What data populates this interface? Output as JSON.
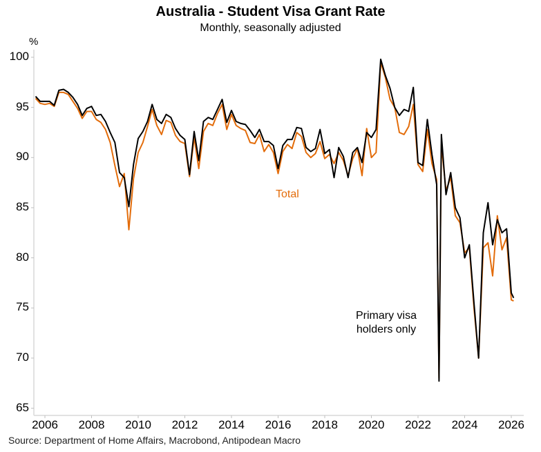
{
  "header": {
    "title": "Australia - Student Visa Grant Rate",
    "subtitle": "Monthly, seasonally adjusted"
  },
  "footer": {
    "source": "Source: Department of Home Affairs, Macrobond, Antipodean Macro"
  },
  "annotations": {
    "total": "Total",
    "primary_line1": "Primary visa",
    "primary_line2": "holders only"
  },
  "colors": {
    "total": "#e36c0a",
    "primary": "#000000",
    "axis": "#d9d9d9"
  },
  "chart_data": {
    "type": "line",
    "title": "Australia - Student Visa Grant Rate",
    "subtitle": "Monthly, seasonally adjusted",
    "xlabel": "",
    "ylabel": "%",
    "ylim": [
      65,
      100
    ],
    "xlim": [
      2005.5,
      2026.3
    ],
    "yticks": [
      65,
      70,
      75,
      80,
      85,
      90,
      95,
      100
    ],
    "xticks": [
      2006,
      2008,
      2010,
      2012,
      2014,
      2016,
      2018,
      2020,
      2022,
      2024,
      2026
    ],
    "grid": false,
    "legend": "inline annotations",
    "series": [
      {
        "name": "Total",
        "color": "#e36c0a",
        "x": [
          2005.6,
          2005.8,
          2006.0,
          2006.2,
          2006.4,
          2006.6,
          2006.8,
          2007.0,
          2007.2,
          2007.4,
          2007.6,
          2007.8,
          2008.0,
          2008.2,
          2008.4,
          2008.6,
          2008.8,
          2009.0,
          2009.2,
          2009.4,
          2009.6,
          2009.8,
          2010.0,
          2010.2,
          2010.4,
          2010.6,
          2010.8,
          2011.0,
          2011.2,
          2011.4,
          2011.6,
          2011.8,
          2012.0,
          2012.2,
          2012.4,
          2012.6,
          2012.8,
          2013.0,
          2013.2,
          2013.4,
          2013.6,
          2013.8,
          2014.0,
          2014.2,
          2014.4,
          2014.6,
          2014.8,
          2015.0,
          2015.2,
          2015.4,
          2015.6,
          2015.8,
          2016.0,
          2016.2,
          2016.4,
          2016.6,
          2016.8,
          2017.0,
          2017.2,
          2017.4,
          2017.6,
          2017.8,
          2018.0,
          2018.2,
          2018.4,
          2018.6,
          2018.8,
          2019.0,
          2019.2,
          2019.4,
          2019.6,
          2019.8,
          2020.0,
          2020.2,
          2020.4,
          2020.6,
          2020.8,
          2021.0,
          2021.2,
          2021.4,
          2021.6,
          2021.8,
          2022.0,
          2022.2,
          2022.4,
          2022.6,
          2022.8,
          2022.9,
          2023.0,
          2023.2,
          2023.4,
          2023.6,
          2023.8,
          2024.0,
          2024.2,
          2024.4,
          2024.6,
          2024.8,
          2025.0,
          2025.2,
          2025.4,
          2025.6,
          2025.8,
          2026.0,
          2026.1
        ],
        "values": [
          95.9,
          95.4,
          95.3,
          95.4,
          95.1,
          96.5,
          96.5,
          96.3,
          95.6,
          94.9,
          93.9,
          94.6,
          94.6,
          93.8,
          93.5,
          92.8,
          91.5,
          89.2,
          87.1,
          88.4,
          82.8,
          87.9,
          90.5,
          91.5,
          93.1,
          94.8,
          93.2,
          92.3,
          93.7,
          93.5,
          92.2,
          91.6,
          91.4,
          88.1,
          92.0,
          88.9,
          92.6,
          93.4,
          93.2,
          94.4,
          95.3,
          92.8,
          94.3,
          93.2,
          92.9,
          92.7,
          91.5,
          91.4,
          92.3,
          90.6,
          91.3,
          90.5,
          88.4,
          90.6,
          91.3,
          90.9,
          92.5,
          92.1,
          90.5,
          90.0,
          90.4,
          91.6,
          89.9,
          90.3,
          89.4,
          90.5,
          89.7,
          88.2,
          89.9,
          90.9,
          88.2,
          92.9,
          90.0,
          90.5,
          99.5,
          98.0,
          95.8,
          95.0,
          92.5,
          92.3,
          93.1,
          95.3,
          89.3,
          88.6,
          92.8,
          89.4,
          87.8,
          68.0,
          91.3,
          86.7,
          88.0,
          84.2,
          83.5,
          80.5,
          81.0,
          75.0,
          70.0,
          81.0,
          81.5,
          78.2,
          84.2,
          80.8,
          82.0,
          75.8,
          75.7
        ]
      },
      {
        "name": "Primary visa holders only",
        "color": "#000000",
        "x": [
          2005.6,
          2005.8,
          2006.0,
          2006.2,
          2006.4,
          2006.6,
          2006.8,
          2007.0,
          2007.2,
          2007.4,
          2007.6,
          2007.8,
          2008.0,
          2008.2,
          2008.4,
          2008.6,
          2008.8,
          2009.0,
          2009.2,
          2009.4,
          2009.6,
          2009.8,
          2010.0,
          2010.2,
          2010.4,
          2010.6,
          2010.8,
          2011.0,
          2011.2,
          2011.4,
          2011.6,
          2011.8,
          2012.0,
          2012.2,
          2012.4,
          2012.6,
          2012.8,
          2013.0,
          2013.2,
          2013.4,
          2013.6,
          2013.8,
          2014.0,
          2014.2,
          2014.4,
          2014.6,
          2014.8,
          2015.0,
          2015.2,
          2015.4,
          2015.6,
          2015.8,
          2016.0,
          2016.2,
          2016.4,
          2016.6,
          2016.8,
          2017.0,
          2017.2,
          2017.4,
          2017.6,
          2017.8,
          2018.0,
          2018.2,
          2018.4,
          2018.6,
          2018.8,
          2019.0,
          2019.2,
          2019.4,
          2019.6,
          2019.8,
          2020.0,
          2020.2,
          2020.4,
          2020.6,
          2020.8,
          2021.0,
          2021.2,
          2021.4,
          2021.6,
          2021.8,
          2022.0,
          2022.2,
          2022.4,
          2022.6,
          2022.8,
          2022.9,
          2023.0,
          2023.2,
          2023.4,
          2023.6,
          2023.8,
          2024.0,
          2024.2,
          2024.4,
          2024.6,
          2024.8,
          2025.0,
          2025.2,
          2025.4,
          2025.6,
          2025.8,
          2026.0,
          2026.1
        ],
        "values": [
          96.1,
          95.6,
          95.6,
          95.6,
          95.2,
          96.7,
          96.8,
          96.5,
          96.0,
          95.3,
          94.2,
          94.9,
          95.1,
          94.2,
          94.3,
          93.6,
          92.5,
          91.5,
          88.5,
          88.0,
          85.1,
          89.3,
          91.9,
          92.6,
          93.6,
          95.3,
          93.8,
          93.4,
          94.3,
          94.0,
          92.9,
          92.2,
          91.8,
          88.3,
          92.6,
          89.7,
          93.6,
          94.0,
          93.8,
          94.8,
          95.8,
          93.5,
          94.7,
          93.6,
          93.4,
          93.3,
          92.7,
          92.0,
          92.8,
          91.6,
          91.6,
          91.2,
          88.9,
          91.2,
          91.8,
          91.8,
          93.0,
          92.9,
          91.0,
          90.6,
          90.9,
          92.8,
          90.4,
          90.8,
          88.0,
          91.0,
          90.1,
          88.0,
          90.5,
          91.0,
          89.5,
          92.5,
          92.0,
          92.8,
          99.8,
          98.2,
          96.9,
          95.0,
          94.2,
          94.8,
          94.6,
          97.0,
          89.5,
          89.2,
          93.8,
          90.3,
          87.3,
          67.7,
          92.3,
          86.3,
          88.5,
          85.0,
          84.0,
          80.0,
          81.3,
          75.5,
          70.0,
          82.5,
          85.5,
          81.3,
          83.8,
          82.5,
          82.9,
          76.5,
          76.0
        ]
      }
    ]
  }
}
